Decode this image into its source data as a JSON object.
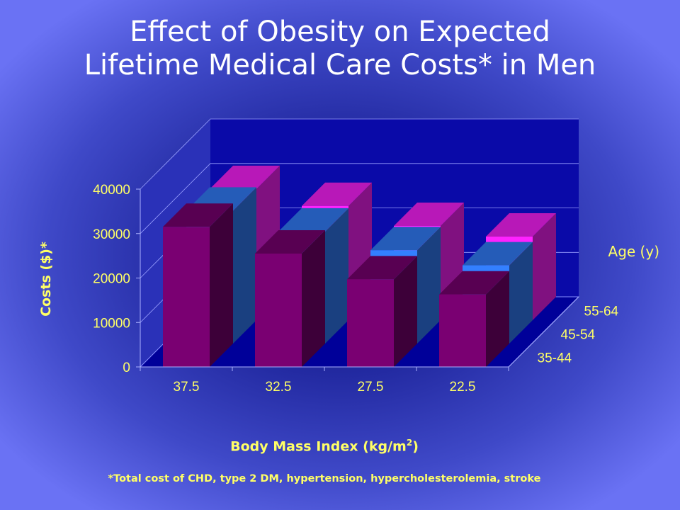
{
  "slide": {
    "title_line1": "Effect of Obesity on Expected",
    "title_line2": "Lifetime Medical Care Costs* in Men",
    "xlabel_main": "Body Mass Index (kg/m",
    "xlabel_sup": "2",
    "xlabel_close": ")",
    "footnote": "*Total cost of CHD, type 2 DM, hypertension, hypercholesterolemia, stroke"
  },
  "chart_data": {
    "type": "bar",
    "style": "3d-clustered",
    "categories": [
      "37.5",
      "32.5",
      "27.5",
      "22.5"
    ],
    "xlabel": "Body Mass Index (kg/m2)",
    "ylabel": "Costs ($)*",
    "yticks": [
      0,
      10000,
      20000,
      30000,
      40000
    ],
    "ylim": [
      0,
      40000
    ],
    "legend_title": "Age (y)",
    "grid": true,
    "series": [
      {
        "name": "35-44",
        "values": [
          31500,
          25500,
          19700,
          16300
        ],
        "color": "#7a0072"
      },
      {
        "name": "45-54",
        "values": [
          29900,
          25200,
          21000,
          17600
        ],
        "color": "#3380ff"
      },
      {
        "name": "55-64",
        "values": [
          29500,
          25700,
          21200,
          18800
        ],
        "color": "#ff22ff"
      }
    ],
    "colors": {
      "axis_text": "#ffff66",
      "floor": "#000099",
      "wall": "#0000aa",
      "title": "#ffffff"
    }
  }
}
